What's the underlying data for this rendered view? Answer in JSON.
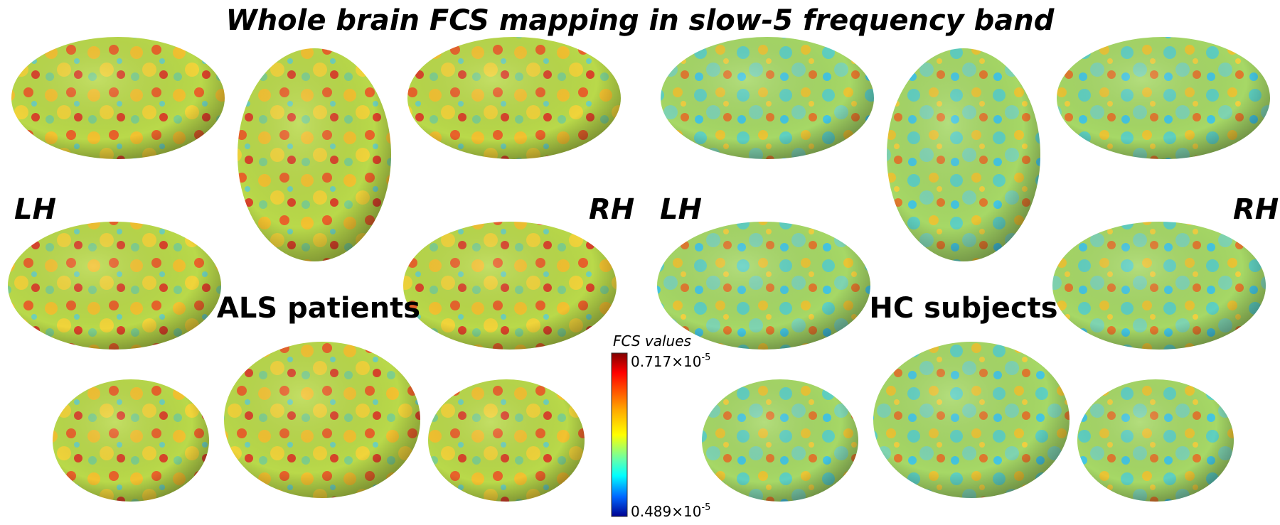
{
  "header": {
    "title": "Whole brain FCS mapping in slow-5 frequency band"
  },
  "panels": [
    {
      "group": "ALS patients",
      "left_label": "LH",
      "right_label": "RH"
    },
    {
      "group": "HC subjects",
      "left_label": "LH",
      "right_label": "RH"
    }
  ],
  "colorbar": {
    "title": "FCS values",
    "max_mantissa": "0.717×10",
    "max_exponent": "-5",
    "min_mantissa": "0.489×10",
    "min_exponent": "-5"
  }
}
